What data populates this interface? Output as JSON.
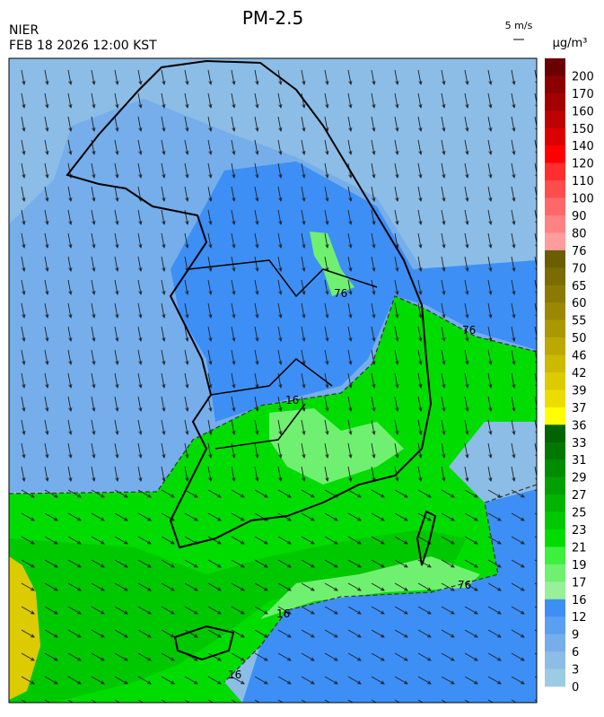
{
  "header": {
    "title": "PM-2.5",
    "agency": "NIER",
    "timestamp": "FEB 18 2026 12:00 KST",
    "wind_scale": "5 m/s"
  },
  "colorbar": {
    "unit": "µg/m³",
    "levels": [
      "200",
      "170",
      "160",
      "150",
      "140",
      "120",
      "110",
      "100",
      "90",
      "80",
      "76",
      "70",
      "65",
      "60",
      "55",
      "50",
      "46",
      "42",
      "39",
      "37",
      "36",
      "33",
      "31",
      "29",
      "27",
      "25",
      "23",
      "21",
      "19",
      "17",
      "16",
      "12",
      "9",
      "6",
      "3",
      "0"
    ],
    "colors": [
      "#6b0000",
      "#8b0000",
      "#a30000",
      "#bf0000",
      "#dc0000",
      "#ff0000",
      "#ff2e2e",
      "#ff4c4c",
      "#ff6868",
      "#ff8282",
      "#ff9c9c",
      "#6b5e00",
      "#7a6c00",
      "#8a7a00",
      "#9a8900",
      "#ab9800",
      "#bca800",
      "#ccb900",
      "#dccb00",
      "#ecdc00",
      "#ffff00",
      "#006400",
      "#007800",
      "#008c00",
      "#00a000",
      "#00b400",
      "#00c800",
      "#00dc00",
      "#3cf03c",
      "#70f070",
      "#98f098",
      "#3d8ff5",
      "#5a9ff0",
      "#75aeea",
      "#8cbde6",
      "#9ccbe4"
    ]
  },
  "map": {
    "contour_labels": [
      "76",
      "76",
      "16",
      "76",
      "16",
      "16"
    ]
  }
}
